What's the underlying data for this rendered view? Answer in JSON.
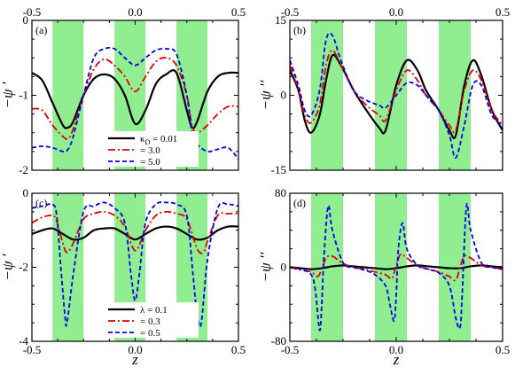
{
  "colors": {
    "band": "#90ee90",
    "black": "#000000",
    "red": "#dd0000",
    "blue": "#0000ee"
  },
  "shaded_bands": [
    [
      -0.4,
      -0.25
    ],
    [
      -0.1,
      0.05
    ],
    [
      0.2,
      0.35
    ]
  ],
  "chart_data": [
    {
      "panel": "(a)",
      "type": "line",
      "ylabel": "−ψ ′",
      "xlabel": "",
      "xlim": [
        -0.5,
        0.5
      ],
      "ylim": [
        -2,
        0
      ],
      "x_ticks": [
        -0.5,
        0.0,
        0.5
      ],
      "x_tick_labels": [
        "-0.5",
        "0.0",
        "0.5"
      ],
      "x_ticks_on_top": true,
      "y_ticks": [
        0,
        -1,
        -2
      ],
      "y_tick_labels": [
        "0",
        "-1",
        "-2"
      ],
      "legend": {
        "position": "bottom-center",
        "symbol": "κD",
        "prefix": "κ",
        "subscript": "D"
      },
      "series": [
        {
          "name": "κD = 0.01",
          "label": "= 0.01",
          "color": "black",
          "dash": "solid",
          "x": [
            -0.5,
            -0.45,
            -0.4,
            -0.35,
            -0.325,
            -0.3,
            -0.25,
            -0.2,
            -0.15,
            -0.1,
            -0.05,
            0.0,
            0.05,
            0.1,
            0.15,
            0.2,
            0.25,
            0.275,
            0.3,
            0.35,
            0.4,
            0.45,
            0.5
          ],
          "y": [
            -0.7,
            -0.8,
            -1.1,
            -1.4,
            -1.43,
            -1.35,
            -1.0,
            -0.78,
            -0.72,
            -0.78,
            -1.0,
            -1.38,
            -1.2,
            -0.85,
            -0.72,
            -0.7,
            -1.2,
            -1.43,
            -1.35,
            -0.95,
            -0.75,
            -0.7,
            -0.7
          ]
        },
        {
          "name": "κD = 3.0",
          "label": "= 3.0",
          "color": "red",
          "dash": "dashdot",
          "x": [
            -0.5,
            -0.45,
            -0.4,
            -0.35,
            -0.325,
            -0.3,
            -0.25,
            -0.2,
            -0.15,
            -0.1,
            -0.05,
            0.0,
            0.05,
            0.1,
            0.15,
            0.2,
            0.25,
            0.275,
            0.3,
            0.35,
            0.4,
            0.45,
            0.5
          ],
          "y": [
            -1.18,
            -1.2,
            -1.4,
            -1.55,
            -1.58,
            -1.45,
            -1.0,
            -0.65,
            -0.52,
            -0.6,
            -0.75,
            -0.95,
            -0.75,
            -0.55,
            -0.5,
            -0.6,
            -1.0,
            -1.4,
            -1.5,
            -1.4,
            -1.25,
            -1.15,
            -1.15
          ]
        },
        {
          "name": "κD = 5.0",
          "label": "= 5.0",
          "color": "blue",
          "dash": "dashed",
          "x": [
            -0.5,
            -0.45,
            -0.4,
            -0.35,
            -0.325,
            -0.3,
            -0.25,
            -0.2,
            -0.15,
            -0.1,
            -0.05,
            0.0,
            0.05,
            0.1,
            0.15,
            0.2,
            0.25,
            0.275,
            0.3,
            0.35,
            0.4,
            0.45,
            0.5
          ],
          "y": [
            -1.7,
            -1.68,
            -1.7,
            -1.75,
            -1.72,
            -1.55,
            -1.0,
            -0.5,
            -0.38,
            -0.38,
            -0.5,
            -0.6,
            -0.5,
            -0.4,
            -0.38,
            -0.45,
            -1.0,
            -1.5,
            -1.65,
            -1.75,
            -1.72,
            -1.7,
            -1.85
          ]
        }
      ]
    },
    {
      "panel": "(b)",
      "type": "line",
      "ylabel": "−ψ ′′",
      "xlabel": "",
      "xlim": [
        -0.5,
        0.5
      ],
      "ylim": [
        -15,
        15
      ],
      "x_ticks": [
        -0.5,
        0.0,
        0.5
      ],
      "x_tick_labels": [
        "-0.5",
        "0.0",
        "0.5"
      ],
      "x_ticks_on_top": true,
      "y_ticks": [
        15,
        0,
        -15
      ],
      "y_tick_labels": [
        "15",
        "0",
        "-15"
      ],
      "series": [
        {
          "name": "κD = 0.01",
          "color": "black",
          "dash": "solid",
          "x": [
            -0.5,
            -0.46,
            -0.43,
            -0.4,
            -0.36,
            -0.33,
            -0.3,
            -0.26,
            -0.2,
            -0.14,
            -0.08,
            -0.05,
            0.0,
            0.05,
            0.1,
            0.14,
            0.2,
            0.25,
            0.28,
            0.32,
            0.36,
            0.4,
            0.45,
            0.5
          ],
          "y": [
            5,
            1,
            -5,
            -7.5,
            -4,
            3,
            8,
            6,
            1,
            -3,
            -6.5,
            -7,
            2,
            7,
            5,
            1,
            -3,
            -7,
            -8,
            2,
            7,
            4,
            -3,
            -7
          ]
        },
        {
          "name": "κD = 3.0",
          "color": "red",
          "dash": "dashdot",
          "x": [
            -0.5,
            -0.46,
            -0.43,
            -0.4,
            -0.36,
            -0.33,
            -0.3,
            -0.26,
            -0.2,
            -0.14,
            -0.08,
            -0.05,
            0.0,
            0.05,
            0.1,
            0.14,
            0.2,
            0.25,
            0.28,
            0.32,
            0.36,
            0.4,
            0.45,
            0.5
          ],
          "y": [
            6,
            1,
            -4,
            -5.5,
            -2,
            6,
            9,
            6,
            1,
            -2,
            -4,
            -5,
            1,
            5,
            3,
            0,
            -3,
            -6,
            -7,
            1,
            5,
            3,
            -3,
            -6
          ]
        },
        {
          "name": "κD = 5.0",
          "color": "blue",
          "dash": "dashed",
          "x": [
            -0.5,
            -0.46,
            -0.43,
            -0.4,
            -0.36,
            -0.33,
            -0.3,
            -0.26,
            -0.2,
            -0.14,
            -0.08,
            -0.05,
            0.0,
            0.05,
            0.1,
            0.14,
            0.2,
            0.25,
            0.28,
            0.32,
            0.36,
            0.4,
            0.45,
            0.5
          ],
          "y": [
            7,
            2,
            -3,
            -4,
            1,
            11,
            12,
            7,
            1,
            -1,
            -2,
            -2.5,
            0,
            2.5,
            2,
            0,
            -3,
            -8,
            -12.5,
            -6,
            2,
            2,
            -4,
            -6
          ]
        }
      ]
    },
    {
      "panel": "(c)",
      "type": "line",
      "ylabel": "−ψ ′",
      "xlabel": "z",
      "xlim": [
        -0.5,
        0.5
      ],
      "ylim": [
        -4,
        0
      ],
      "x_ticks": [
        -0.5,
        0.0,
        0.5
      ],
      "x_tick_labels": [
        "-0.5",
        "0.0",
        "0.5"
      ],
      "y_ticks": [
        0,
        -2,
        -4
      ],
      "y_tick_labels": [
        "0",
        "-2",
        "-4"
      ],
      "legend": {
        "position": "bottom-center",
        "symbol": "λ"
      },
      "series": [
        {
          "name": "λ = 0.1",
          "label": "λ = 0.1",
          "color": "black",
          "dash": "solid",
          "x": [
            -0.5,
            -0.45,
            -0.4,
            -0.35,
            -0.3,
            -0.25,
            -0.2,
            -0.15,
            -0.1,
            -0.05,
            0.0,
            0.05,
            0.1,
            0.15,
            0.2,
            0.25,
            0.3,
            0.35,
            0.4,
            0.45,
            0.5
          ],
          "y": [
            -1.1,
            -1.0,
            -0.95,
            -1.1,
            -1.25,
            -1.2,
            -1.0,
            -0.95,
            -0.95,
            -1.1,
            -1.25,
            -1.1,
            -0.95,
            -0.9,
            -0.95,
            -1.1,
            -1.25,
            -1.2,
            -1.0,
            -0.9,
            -0.9
          ]
        },
        {
          "name": "λ = 0.3",
          "label": "= 0.3",
          "color": "red",
          "dash": "dashdot",
          "x": [
            -0.5,
            -0.45,
            -0.4,
            -0.38,
            -0.35,
            -0.33,
            -0.3,
            -0.25,
            -0.2,
            -0.15,
            -0.1,
            -0.05,
            0.0,
            0.05,
            0.1,
            0.15,
            0.2,
            0.25,
            0.3,
            0.33,
            0.35,
            0.4,
            0.45,
            0.5
          ],
          "y": [
            -0.8,
            -0.65,
            -0.6,
            -0.75,
            -1.35,
            -1.6,
            -1.35,
            -0.7,
            -0.55,
            -0.5,
            -0.6,
            -0.9,
            -1.55,
            -1.0,
            -0.6,
            -0.5,
            -0.55,
            -0.7,
            -1.5,
            -1.6,
            -1.3,
            -0.6,
            -0.55,
            -0.55
          ]
        },
        {
          "name": "λ = 0.5",
          "label": "= 0.5",
          "color": "blue",
          "dash": "dashed",
          "x": [
            -0.5,
            -0.45,
            -0.4,
            -0.38,
            -0.36,
            -0.34,
            -0.33,
            -0.3,
            -0.25,
            -0.2,
            -0.15,
            -0.1,
            -0.05,
            -0.02,
            0.0,
            0.02,
            0.05,
            0.1,
            0.15,
            0.2,
            0.25,
            0.28,
            0.3,
            0.32,
            0.35,
            0.4,
            0.45,
            0.5
          ],
          "y": [
            -0.4,
            -0.35,
            -0.3,
            -0.6,
            -2.0,
            -3.3,
            -3.5,
            -2.2,
            -0.5,
            -0.35,
            -0.25,
            -0.4,
            -0.8,
            -2.2,
            -2.9,
            -2.2,
            -0.8,
            -0.3,
            -0.25,
            -0.3,
            -0.6,
            -2.2,
            -3.3,
            -3.5,
            -1.8,
            -0.4,
            -0.3,
            -0.35
          ]
        }
      ]
    },
    {
      "panel": "(d)",
      "type": "line",
      "ylabel": "−ψ ′′",
      "xlabel": "z",
      "xlim": [
        -0.5,
        0.5
      ],
      "ylim": [
        -80,
        80
      ],
      "x_ticks": [
        -0.5,
        0.0,
        0.5
      ],
      "x_tick_labels": [
        "-0.5",
        "0.0",
        "0.5"
      ],
      "y_ticks": [
        80,
        0,
        -80
      ],
      "y_tick_labels": [
        "80",
        "0",
        "-80"
      ],
      "series": [
        {
          "name": "λ = 0.1",
          "color": "black",
          "dash": "solid",
          "x": [
            -0.5,
            -0.45,
            -0.4,
            -0.35,
            -0.3,
            -0.25,
            -0.2,
            -0.15,
            -0.1,
            -0.05,
            0.0,
            0.05,
            0.1,
            0.15,
            0.2,
            0.25,
            0.3,
            0.35,
            0.4,
            0.45,
            0.5
          ],
          "y": [
            0,
            -1,
            -2,
            -1,
            1,
            2,
            1,
            0,
            -1,
            -2,
            -1,
            1,
            2,
            1,
            0,
            -1,
            -1,
            1,
            2,
            1,
            0
          ]
        },
        {
          "name": "λ = 0.3",
          "color": "red",
          "dash": "dashdot",
          "x": [
            -0.5,
            -0.45,
            -0.4,
            -0.37,
            -0.35,
            -0.33,
            -0.3,
            -0.25,
            -0.2,
            -0.15,
            -0.1,
            -0.05,
            -0.02,
            0.0,
            0.02,
            0.05,
            0.1,
            0.15,
            0.2,
            0.25,
            0.28,
            0.3,
            0.32,
            0.35,
            0.4,
            0.45,
            0.5
          ],
          "y": [
            0,
            -3,
            -5,
            -10,
            -2,
            10,
            12,
            4,
            0,
            -2,
            -5,
            -8,
            -12,
            2,
            14,
            10,
            2,
            -2,
            -5,
            -10,
            -14,
            0,
            12,
            10,
            2,
            0,
            -2
          ]
        },
        {
          "name": "λ = 0.5",
          "color": "blue",
          "dash": "dashed",
          "x": [
            -0.5,
            -0.45,
            -0.4,
            -0.38,
            -0.36,
            -0.35,
            -0.34,
            -0.32,
            -0.3,
            -0.25,
            -0.2,
            -0.15,
            -0.1,
            -0.05,
            -0.03,
            -0.01,
            0.0,
            0.01,
            0.03,
            0.05,
            0.1,
            0.15,
            0.2,
            0.25,
            0.28,
            0.3,
            0.31,
            0.33,
            0.35,
            0.4,
            0.45,
            0.5
          ],
          "y": [
            0,
            -2,
            -8,
            -25,
            -68,
            -40,
            10,
            66,
            40,
            5,
            0,
            -3,
            -8,
            -20,
            -40,
            -58,
            -30,
            20,
            48,
            20,
            2,
            -2,
            -6,
            -20,
            -55,
            -65,
            -30,
            66,
            40,
            5,
            0,
            -2
          ]
        }
      ]
    }
  ]
}
